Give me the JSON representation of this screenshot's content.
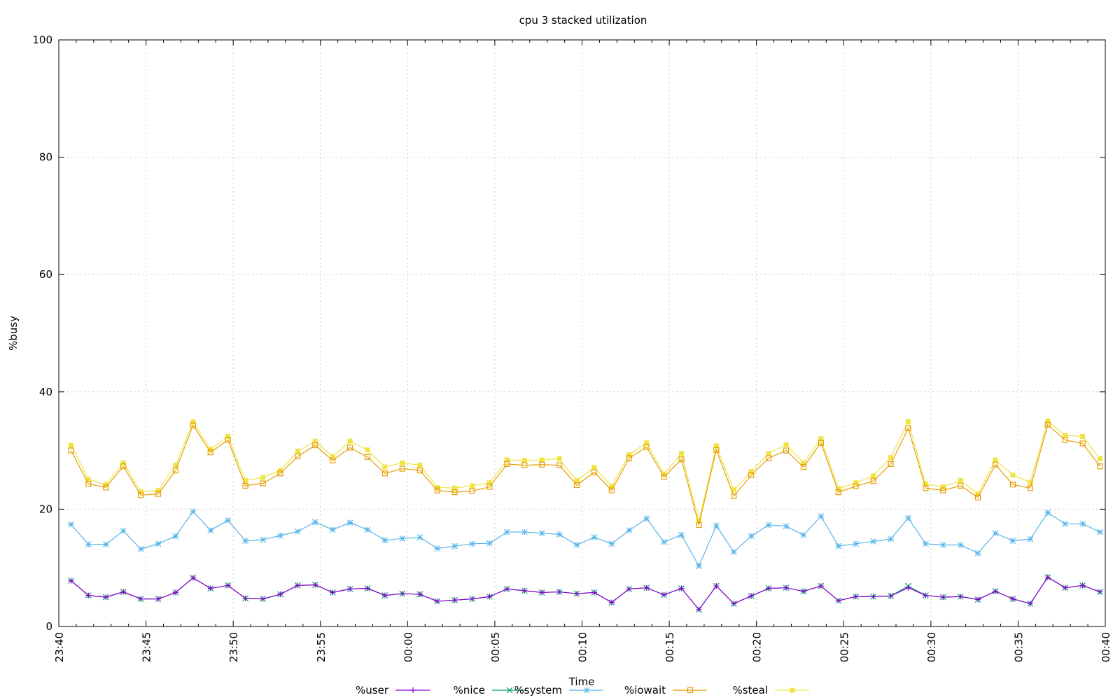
{
  "chart_data": {
    "type": "line",
    "title": "cpu 3 stacked utilization",
    "xlabel": "Time",
    "ylabel": "%busy",
    "ylim": [
      0,
      100
    ],
    "yticks": [
      "0",
      "20",
      "40",
      "60",
      "80",
      "100"
    ],
    "xticks": [
      "23:40",
      "23:45",
      "23:50",
      "23:55",
      "00:00",
      "00:05",
      "00:10",
      "00:15",
      "00:20",
      "00:25",
      "00:30",
      "00:35",
      "00:40"
    ],
    "xlim_minutes": [
      0,
      60
    ],
    "x_minutes": [
      0.7,
      1.7,
      2.7,
      3.7,
      4.7,
      5.7,
      6.7,
      7.7,
      8.7,
      9.7,
      10.7,
      11.7,
      12.7,
      13.7,
      14.7,
      15.7,
      16.7,
      17.7,
      18.7,
      19.7,
      20.7,
      21.7,
      22.7,
      23.7,
      24.7,
      25.7,
      26.7,
      27.7,
      28.7,
      29.7,
      30.7,
      31.7,
      32.7,
      33.7,
      34.7,
      35.7,
      36.7,
      37.7,
      38.7,
      39.7,
      40.7,
      41.7,
      42.7,
      43.7,
      44.7,
      45.7,
      46.7,
      47.7,
      48.7,
      49.7,
      50.7,
      51.7,
      52.7,
      53.7,
      54.7,
      55.7,
      56.7,
      57.7,
      58.7,
      59.7
    ],
    "grid": true,
    "legend_position": "bottom",
    "series": [
      {
        "name": "%user",
        "color": "#9400d3",
        "marker": "plus",
        "values": [
          7.8,
          5.3,
          5.0,
          5.9,
          4.7,
          4.7,
          5.8,
          8.3,
          6.5,
          7.0,
          4.8,
          4.7,
          5.5,
          7.0,
          7.1,
          5.8,
          6.4,
          6.5,
          5.3,
          5.6,
          5.5,
          4.3,
          4.5,
          4.7,
          5.1,
          6.4,
          6.1,
          5.8,
          5.9,
          5.6,
          5.8,
          4.1,
          6.4,
          6.6,
          5.4,
          6.5,
          2.9,
          6.9,
          3.9,
          5.2,
          6.5,
          6.6,
          6.0,
          6.9,
          4.4,
          5.1,
          5.1,
          5.2,
          6.6,
          5.3,
          5.0,
          5.1,
          4.6,
          6.0,
          4.7,
          3.9,
          8.4,
          6.6,
          7.0,
          5.9
        ]
      },
      {
        "name": "%nice",
        "color": "#009e73",
        "marker": "cross",
        "values": [
          7.8,
          5.3,
          5.0,
          5.9,
          4.7,
          4.7,
          5.8,
          8.3,
          6.5,
          7.0,
          4.8,
          4.7,
          5.5,
          7.0,
          7.1,
          5.8,
          6.4,
          6.5,
          5.3,
          5.6,
          5.5,
          4.3,
          4.5,
          4.7,
          5.1,
          6.4,
          6.1,
          5.8,
          5.9,
          5.6,
          5.8,
          4.1,
          6.4,
          6.6,
          5.4,
          6.5,
          2.9,
          6.9,
          3.9,
          5.2,
          6.5,
          6.6,
          6.0,
          6.9,
          4.4,
          5.1,
          5.1,
          5.2,
          6.9,
          5.3,
          5.0,
          5.1,
          4.6,
          6.0,
          4.7,
          3.9,
          8.4,
          6.6,
          7.0,
          5.9
        ]
      },
      {
        "name": "%system",
        "color": "#56b4e9",
        "marker": "star",
        "values": [
          17.4,
          14.0,
          14.0,
          16.3,
          13.2,
          14.1,
          15.4,
          19.6,
          16.4,
          18.1,
          14.6,
          14.8,
          15.5,
          16.2,
          17.8,
          16.5,
          17.7,
          16.5,
          14.7,
          15.0,
          15.2,
          13.3,
          13.7,
          14.1,
          14.2,
          16.1,
          16.1,
          15.9,
          15.7,
          13.9,
          15.2,
          14.1,
          16.4,
          18.4,
          14.4,
          15.6,
          10.3,
          17.2,
          12.7,
          15.4,
          17.3,
          17.1,
          15.6,
          18.8,
          13.7,
          14.1,
          14.5,
          14.9,
          18.5,
          14.1,
          13.9,
          13.9,
          12.5,
          15.9,
          14.6,
          14.9,
          19.4,
          17.5,
          17.5,
          16.1
        ]
      },
      {
        "name": "%iowait",
        "color": "#e69f00",
        "marker": "square-open",
        "values": [
          30.0,
          24.3,
          23.7,
          27.3,
          22.4,
          22.6,
          26.6,
          34.3,
          29.7,
          31.8,
          24.0,
          24.4,
          26.1,
          29.0,
          30.9,
          28.3,
          30.5,
          28.9,
          26.1,
          26.9,
          26.6,
          23.2,
          22.9,
          23.1,
          23.8,
          27.7,
          27.5,
          27.6,
          27.5,
          24.1,
          26.3,
          23.2,
          28.7,
          30.6,
          25.5,
          28.5,
          17.3,
          30.1,
          22.2,
          25.8,
          28.7,
          30.0,
          27.2,
          31.3,
          22.9,
          23.9,
          24.8,
          27.7,
          33.8,
          23.6,
          23.2,
          24.0,
          22.0,
          27.6,
          24.2,
          23.6,
          34.4,
          31.8,
          31.2,
          27.3
        ]
      },
      {
        "name": "%steal",
        "color": "#f0e442",
        "marker": "square-filled",
        "values": [
          30.9,
          25.1,
          24.2,
          27.9,
          23.0,
          23.2,
          27.5,
          34.9,
          30.2,
          32.4,
          24.9,
          25.4,
          26.6,
          29.9,
          31.6,
          29.0,
          31.6,
          30.1,
          27.2,
          27.9,
          27.5,
          23.7,
          23.6,
          24.0,
          24.5,
          28.4,
          28.3,
          28.4,
          28.6,
          24.9,
          27.1,
          23.9,
          29.3,
          31.3,
          26.0,
          29.5,
          18.0,
          30.8,
          23.3,
          26.4,
          29.5,
          31.0,
          27.9,
          32.0,
          23.5,
          24.5,
          25.7,
          28.8,
          34.9,
          24.3,
          23.8,
          24.9,
          22.6,
          28.4,
          25.8,
          24.6,
          35.0,
          32.6,
          32.4,
          28.6
        ]
      }
    ]
  }
}
